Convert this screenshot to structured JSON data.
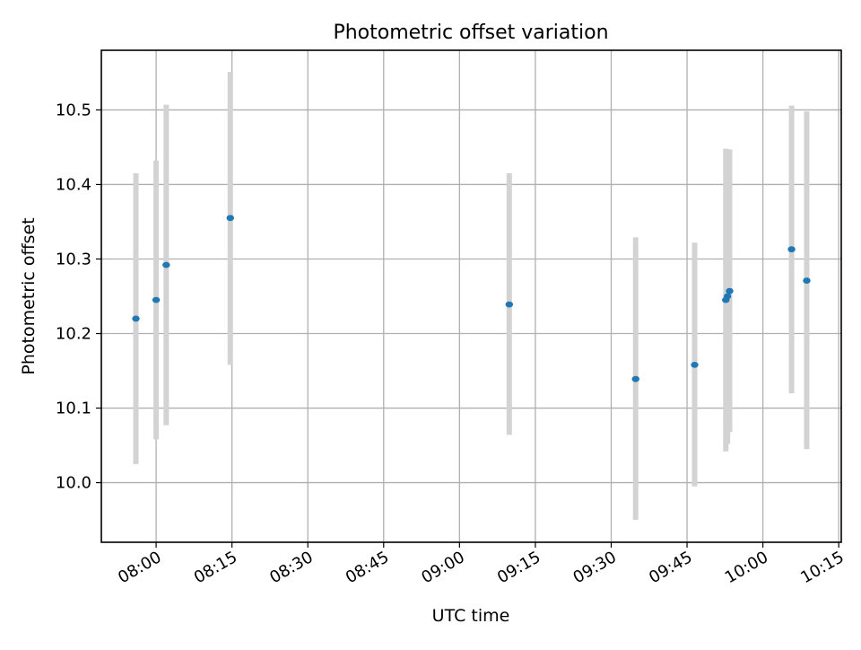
{
  "chart_data": {
    "type": "scatter",
    "title": "Photometric offset variation",
    "xlabel": "UTC time",
    "ylabel": "Photometric offset",
    "x_axis": {
      "kind": "time",
      "range": [
        "07:49:10",
        "10:15:30"
      ],
      "ticks": [
        "08:00",
        "08:15",
        "08:30",
        "08:45",
        "09:00",
        "09:15",
        "09:30",
        "09:45",
        "10:00",
        "10:15"
      ]
    },
    "y_axis": {
      "range": [
        9.92,
        10.58
      ],
      "ticks": [
        "10.0",
        "10.1",
        "10.2",
        "10.3",
        "10.4",
        "10.5"
      ]
    },
    "grid": true,
    "legend": "none",
    "series": [
      {
        "points": [
          {
            "x": "07:56:00",
            "y": 10.22,
            "y_low": 10.025,
            "y_high": 10.415
          },
          {
            "x": "08:00:00",
            "y": 10.245,
            "y_low": 10.058,
            "y_high": 10.432
          },
          {
            "x": "08:02:00",
            "y": 10.292,
            "y_low": 10.077,
            "y_high": 10.507
          },
          {
            "x": "08:14:40",
            "y": 10.355,
            "y_low": 10.158,
            "y_high": 10.551
          },
          {
            "x": "09:09:50",
            "y": 10.239,
            "y_low": 10.064,
            "y_high": 10.415
          },
          {
            "x": "09:34:50",
            "y": 10.139,
            "y_low": 9.95,
            "y_high": 10.329
          },
          {
            "x": "09:46:30",
            "y": 10.158,
            "y_low": 9.995,
            "y_high": 10.322
          },
          {
            "x": "09:52:40",
            "y": 10.245,
            "y_low": 10.042,
            "y_high": 10.448
          },
          {
            "x": "09:53:00",
            "y": 10.25,
            "y_low": 10.052,
            "y_high": 10.447
          },
          {
            "x": "09:53:25",
            "y": 10.257,
            "y_low": 10.068,
            "y_high": 10.447
          },
          {
            "x": "10:05:40",
            "y": 10.313,
            "y_low": 10.12,
            "y_high": 10.506
          },
          {
            "x": "10:08:40",
            "y": 10.271,
            "y_low": 10.045,
            "y_high": 10.498
          }
        ]
      }
    ],
    "colors": {
      "point": "#1f77b4",
      "errorbar": "#d3d3d3",
      "grid": "#b0b0b0",
      "axes": "#000000"
    }
  }
}
